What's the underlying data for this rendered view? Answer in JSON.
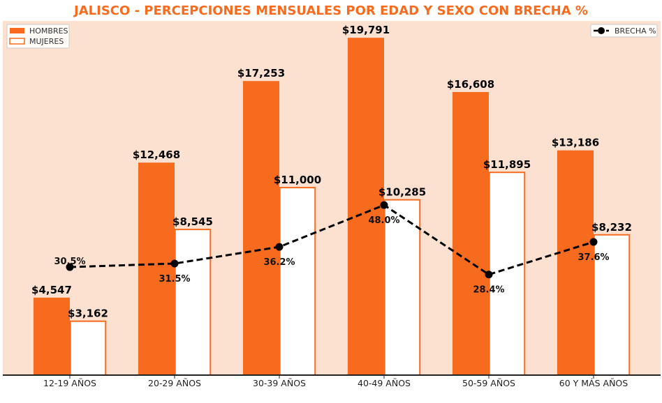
{
  "chart_data": {
    "type": "bar",
    "title": "JALISCO - PERCEPCIONES MENSUALES POR EDAD Y SEXO CON BRECHA %",
    "categories": [
      "12-19 AÑOS",
      "20-29 AÑOS",
      "30-39 AÑOS",
      "40-49 AÑOS",
      "50-59 AÑOS",
      "60 Y MÁS AÑOS"
    ],
    "series": [
      {
        "name": "HOMBRES",
        "values": [
          4547,
          12468,
          17253,
          19791,
          16608,
          13186
        ],
        "labels": [
          "$4,547",
          "$12,468",
          "$17,253",
          "$19,791",
          "$16,608",
          "$13,186"
        ],
        "color": "#F76B1F",
        "style": "filled"
      },
      {
        "name": "MUJERES",
        "values": [
          3162,
          8545,
          11000,
          10285,
          11895,
          8232
        ],
        "labels": [
          "$3,162",
          "$8,545",
          "$11,000",
          "$10,285",
          "$11,895",
          "$8,232"
        ],
        "color": "#FFFFFF",
        "edge_color": "#F76B1F",
        "style": "outlined"
      }
    ],
    "line_series": {
      "name": "BRECHA %",
      "values": [
        30.5,
        31.5,
        36.2,
        48.0,
        28.4,
        37.6
      ],
      "labels": [
        "30.5%",
        "31.5%",
        "36.2%",
        "48.0%",
        "28.4%",
        "37.6%"
      ],
      "color": "#000000",
      "style": "dashed",
      "axis": "secondary",
      "ylim": [
        0,
        100
      ]
    },
    "ylim": [
      0,
      20780
    ],
    "xlabel": "",
    "ylabel": "",
    "grid": false,
    "legend": {
      "bars": "top-left",
      "line": "top-right"
    },
    "background": "#FCE1D1",
    "title_color": "#F76B1F"
  }
}
